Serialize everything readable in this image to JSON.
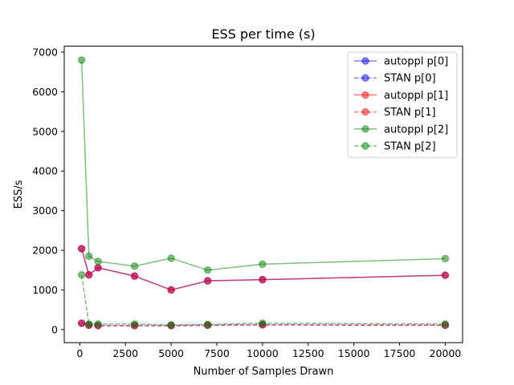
{
  "chart_data": {
    "type": "line",
    "title": "ESS per time (s)",
    "xlabel": "Number of Samples Drawn",
    "ylabel": "ESS/s",
    "xlim": [
      -850,
      20950
    ],
    "ylim": [
      -330,
      7150
    ],
    "xticks": [
      0,
      2500,
      5000,
      7500,
      10000,
      12500,
      15000,
      17500,
      20000
    ],
    "xtick_labels": [
      "0",
      "2500",
      "5000",
      "7500",
      "10000",
      "12500",
      "15000",
      "17500",
      "20000"
    ],
    "yticks": [
      0,
      1000,
      2000,
      3000,
      4000,
      5000,
      6000,
      7000
    ],
    "ytick_labels": [
      "0",
      "1000",
      "2000",
      "3000",
      "4000",
      "5000",
      "6000",
      "7000"
    ],
    "grid": false,
    "legend_position": "top-right",
    "x": [
      100,
      500,
      1000,
      3000,
      5000,
      7000,
      10000,
      20000
    ],
    "series": [
      {
        "name": "autoppl p[0]",
        "color": "#0000ff",
        "dash": "solid",
        "values": [
          2040,
          1380,
          1560,
          1350,
          1000,
          1230,
          1260,
          1370
        ]
      },
      {
        "name": "STAN p[0]",
        "color": "#0000ff",
        "dash": "dashed",
        "values": [
          160,
          110,
          100,
          100,
          100,
          110,
          120,
          110
        ]
      },
      {
        "name": "autoppl p[1]",
        "color": "#ff0000",
        "dash": "solid",
        "values": [
          2040,
          1380,
          1560,
          1350,
          1000,
          1230,
          1260,
          1370
        ]
      },
      {
        "name": "STAN p[1]",
        "color": "#ff0000",
        "dash": "dashed",
        "values": [
          160,
          110,
          100,
          100,
          100,
          110,
          120,
          110
        ]
      },
      {
        "name": "autoppl p[2]",
        "color": "#008000",
        "dash": "solid",
        "values": [
          6800,
          1850,
          1720,
          1600,
          1800,
          1500,
          1650,
          1790
        ]
      },
      {
        "name": "STAN p[2]",
        "color": "#008000",
        "dash": "dashed",
        "values": [
          1380,
          140,
          140,
          140,
          120,
          130,
          160,
          140
        ]
      }
    ]
  }
}
